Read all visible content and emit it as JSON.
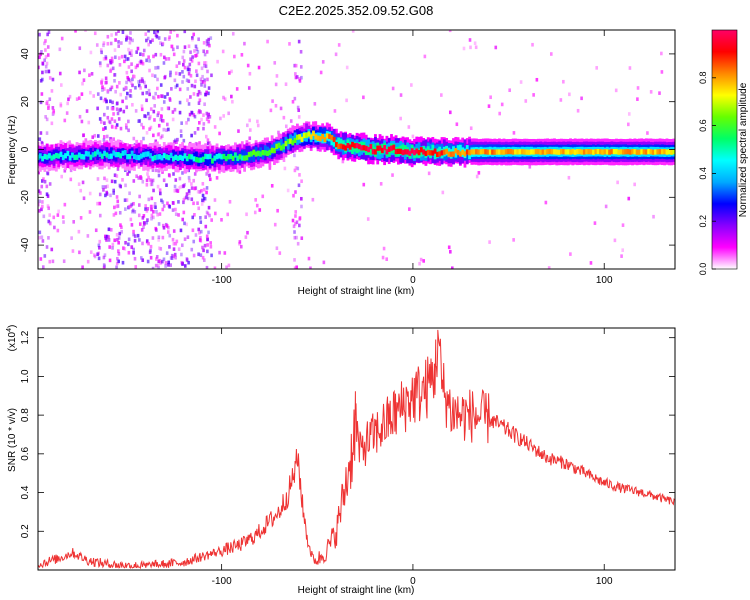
{
  "title": "C2E2.2025.352.09.52.G08",
  "chart_data": [
    {
      "type": "heatmap",
      "title": "C2E2.2025.352.09.52.G08",
      "xlabel": "Height of straight line (km)",
      "ylabel": "Frequency (Hz)",
      "xlim": [
        -196,
        137
      ],
      "ylim": [
        -50,
        50
      ],
      "xticks": [
        -100,
        0,
        100
      ],
      "xtick_labels": [
        "-100",
        "0",
        "100"
      ],
      "yticks": [
        -40,
        -20,
        0,
        20,
        40
      ],
      "ytick_labels": [
        "-40",
        "-20",
        "0",
        "20",
        "40"
      ],
      "colorbar": {
        "label": "Normalized spectral amplitude",
        "range": [
          0,
          1
        ],
        "ticks": [
          0.0,
          0.2,
          0.4,
          0.6,
          0.8
        ],
        "tick_labels": [
          "0.0",
          "0.2",
          "0.4",
          "0.6",
          "0.8"
        ],
        "colors": [
          "#ffffff",
          "#ff00ff",
          "#8800ff",
          "#0000ff",
          "#00aaff",
          "#00ffff",
          "#00ff66",
          "#66ff00",
          "#ffff00",
          "#ff8800",
          "#ff0000",
          "#ff0066"
        ]
      },
      "ridge": {
        "description_points_x_km": [
          -196,
          -160,
          -130,
          -110,
          -90,
          -75,
          -62,
          -55,
          -45,
          -38,
          -30,
          -20,
          -10,
          0,
          10,
          20,
          40,
          60,
          80,
          100,
          120,
          137
        ],
        "frequency_hz": [
          -3,
          -2,
          -3,
          -4,
          -3,
          -1,
          4,
          6,
          5,
          2,
          1,
          0,
          0,
          -1,
          -1,
          -1,
          -1,
          -1,
          -1,
          -1,
          -1,
          -1
        ],
        "amplitude": [
          0.45,
          0.45,
          0.45,
          0.5,
          0.55,
          0.6,
          0.65,
          0.7,
          0.8,
          0.9,
          0.95,
          0.97,
          0.97,
          0.95,
          0.9,
          0.85,
          0.8,
          0.78,
          0.78,
          0.78,
          0.78,
          0.75
        ]
      }
    },
    {
      "type": "line",
      "xlabel": "Height of straight line (km)",
      "ylabel": "SNR (10 * v/v)",
      "scale_label": "(x10",
      "scale_exponent": "4",
      "scale_suffix": ")",
      "xlim": [
        -196,
        137
      ],
      "ylim": [
        0.0,
        1.25
      ],
      "xticks": [
        -100,
        0,
        100
      ],
      "xtick_labels": [
        "-100",
        "0",
        "100"
      ],
      "yticks": [
        0.2,
        0.4,
        0.6,
        0.8,
        1.0,
        1.2
      ],
      "ytick_labels": [
        "0.2",
        "0.4",
        "0.6",
        "0.8",
        "1.0",
        "1.2"
      ],
      "color": "#ee3333",
      "series": [
        {
          "name": "SNR",
          "x": [
            -196,
            -185,
            -178,
            -170,
            -160,
            -150,
            -140,
            -130,
            -120,
            -110,
            -100,
            -90,
            -82,
            -75,
            -70,
            -65,
            -62,
            -60,
            -58,
            -55,
            -52,
            -50,
            -45,
            -40,
            -35,
            -32,
            -30,
            -28,
            -25,
            -20,
            -15,
            -10,
            -5,
            0,
            5,
            8,
            10,
            12,
            13,
            15,
            18,
            20,
            25,
            30,
            40,
            50,
            60,
            70,
            80,
            90,
            100,
            110,
            120,
            130,
            137
          ],
          "y": [
            0.03,
            0.06,
            0.09,
            0.05,
            0.03,
            0.02,
            0.02,
            0.03,
            0.04,
            0.07,
            0.1,
            0.13,
            0.18,
            0.25,
            0.3,
            0.4,
            0.5,
            0.58,
            0.35,
            0.15,
            0.05,
            0.05,
            0.1,
            0.2,
            0.45,
            0.6,
            0.8,
            0.6,
            0.65,
            0.7,
            0.75,
            0.8,
            0.85,
            0.9,
            0.92,
            0.95,
            1.0,
            1.05,
            1.24,
            0.95,
            0.88,
            0.82,
            0.8,
            0.8,
            0.78,
            0.72,
            0.65,
            0.58,
            0.55,
            0.5,
            0.45,
            0.42,
            0.4,
            0.37,
            0.35
          ]
        }
      ]
    }
  ]
}
